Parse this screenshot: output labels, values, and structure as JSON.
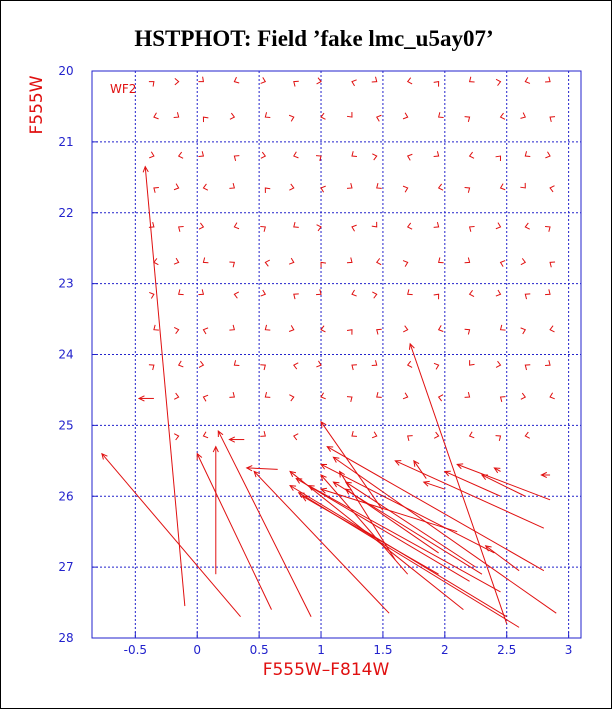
{
  "chart_data": {
    "type": "quiver",
    "title": "HSTPHOT: Field ’fake lmc_u5ay07’",
    "xlabel": "F555W–F814W",
    "ylabel": "F555W",
    "field_label": "WF2",
    "xlim": [
      -0.85,
      3.1
    ],
    "ylim": [
      28,
      20
    ],
    "xticks": [
      -0.5,
      0,
      0.5,
      1,
      1.5,
      2,
      2.5,
      3
    ],
    "xtick_labels": [
      "-0.5",
      "0",
      "0.5",
      "1",
      "1.5",
      "2",
      "2.5",
      "3"
    ],
    "yticks": [
      20,
      21,
      22,
      23,
      24,
      25,
      26,
      27,
      28
    ],
    "ytick_labels": [
      "20",
      "21",
      "22",
      "23",
      "24",
      "25",
      "26",
      "27",
      "28"
    ],
    "grid": true,
    "colors": {
      "vector": "#e01010",
      "axes": "#2222cc",
      "labels": "#e01010",
      "title": "#000000"
    },
    "grid_x": [
      -0.35,
      -0.15,
      0.05,
      0.3,
      0.55,
      0.78,
      1.0,
      1.25,
      1.45,
      1.7,
      1.95,
      2.2,
      2.45,
      2.65,
      2.85
    ],
    "grid_y": [
      20.15,
      20.65,
      21.2,
      21.65,
      22.2,
      22.7,
      23.15,
      23.65,
      24.15,
      24.6,
      25.15
    ],
    "short_vectors": [
      {
        "x": -0.35,
        "y": 20.15,
        "dx": 0.04,
        "dy": -0.06
      },
      {
        "x": -0.15,
        "y": 20.15,
        "dx": 0.05,
        "dy": 0.0
      },
      {
        "x": 0.05,
        "y": 20.15,
        "dx": 0.04,
        "dy": 0.06
      },
      {
        "x": 0.3,
        "y": 20.15,
        "dx": -0.05,
        "dy": 0.04
      },
      {
        "x": 0.55,
        "y": 20.15,
        "dx": 0.05,
        "dy": 0.03
      },
      {
        "x": 0.78,
        "y": 20.15,
        "dx": -0.04,
        "dy": -0.05
      },
      {
        "x": 1.0,
        "y": 20.15,
        "dx": 0.05,
        "dy": 0.02
      },
      {
        "x": 1.25,
        "y": 20.15,
        "dx": -0.05,
        "dy": -0.03
      },
      {
        "x": 1.45,
        "y": 20.15,
        "dx": 0.04,
        "dy": 0.05
      },
      {
        "x": 1.7,
        "y": 20.15,
        "dx": -0.05,
        "dy": 0.02
      },
      {
        "x": 1.95,
        "y": 20.15,
        "dx": 0.03,
        "dy": -0.06
      },
      {
        "x": 2.2,
        "y": 20.15,
        "dx": -0.04,
        "dy": 0.05
      },
      {
        "x": 2.45,
        "y": 20.15,
        "dx": 0.05,
        "dy": -0.02
      },
      {
        "x": 2.65,
        "y": 20.15,
        "dx": -0.05,
        "dy": 0.03
      },
      {
        "x": 2.85,
        "y": 20.15,
        "dx": 0.04,
        "dy": 0.05
      },
      {
        "x": -0.35,
        "y": 20.65,
        "dx": -0.05,
        "dy": 0.03
      },
      {
        "x": -0.15,
        "y": 20.65,
        "dx": 0.04,
        "dy": 0.05
      },
      {
        "x": 0.05,
        "y": 20.65,
        "dx": -0.03,
        "dy": -0.06
      },
      {
        "x": 0.3,
        "y": 20.65,
        "dx": 0.05,
        "dy": 0.02
      },
      {
        "x": 0.55,
        "y": 20.65,
        "dx": -0.04,
        "dy": 0.05
      },
      {
        "x": 0.78,
        "y": 20.65,
        "dx": 0.05,
        "dy": -0.03
      },
      {
        "x": 1.0,
        "y": 20.65,
        "dx": -0.05,
        "dy": 0.02
      },
      {
        "x": 1.25,
        "y": 20.65,
        "dx": 0.03,
        "dy": 0.06
      },
      {
        "x": 1.45,
        "y": 20.65,
        "dx": -0.05,
        "dy": -0.03
      },
      {
        "x": 1.7,
        "y": 20.65,
        "dx": 0.05,
        "dy": 0.03
      },
      {
        "x": 1.95,
        "y": 20.65,
        "dx": -0.04,
        "dy": 0.05
      },
      {
        "x": 2.2,
        "y": 20.65,
        "dx": 0.04,
        "dy": -0.05
      },
      {
        "x": 2.45,
        "y": 20.65,
        "dx": -0.05,
        "dy": 0.02
      },
      {
        "x": 2.65,
        "y": 20.65,
        "dx": 0.05,
        "dy": 0.04
      },
      {
        "x": 2.85,
        "y": 20.65,
        "dx": -0.04,
        "dy": -0.05
      },
      {
        "x": -0.35,
        "y": 21.2,
        "dx": 0.05,
        "dy": 0.03
      },
      {
        "x": -0.15,
        "y": 21.2,
        "dx": -0.05,
        "dy": 0.02
      },
      {
        "x": 0.05,
        "y": 21.2,
        "dx": 0.04,
        "dy": 0.05
      },
      {
        "x": 0.3,
        "y": 21.2,
        "dx": -0.04,
        "dy": -0.05
      },
      {
        "x": 0.55,
        "y": 21.2,
        "dx": 0.05,
        "dy": 0.02
      },
      {
        "x": 0.78,
        "y": 21.2,
        "dx": -0.05,
        "dy": 0.03
      },
      {
        "x": 1.0,
        "y": 21.2,
        "dx": 0.04,
        "dy": -0.05
      },
      {
        "x": 1.25,
        "y": 21.2,
        "dx": -0.04,
        "dy": 0.05
      },
      {
        "x": 1.45,
        "y": 21.2,
        "dx": 0.05,
        "dy": -0.02
      },
      {
        "x": 1.7,
        "y": 21.2,
        "dx": -0.05,
        "dy": -0.03
      },
      {
        "x": 1.95,
        "y": 21.2,
        "dx": 0.04,
        "dy": 0.05
      },
      {
        "x": 2.2,
        "y": 21.2,
        "dx": -0.05,
        "dy": 0.02
      },
      {
        "x": 2.45,
        "y": 21.2,
        "dx": 0.03,
        "dy": -0.06
      },
      {
        "x": 2.65,
        "y": 21.2,
        "dx": -0.04,
        "dy": 0.05
      },
      {
        "x": 2.85,
        "y": 21.2,
        "dx": 0.05,
        "dy": 0.03
      },
      {
        "x": -0.35,
        "y": 21.65,
        "dx": -0.04,
        "dy": -0.05
      },
      {
        "x": -0.15,
        "y": 21.65,
        "dx": 0.05,
        "dy": 0.03
      },
      {
        "x": 0.05,
        "y": 21.65,
        "dx": -0.05,
        "dy": 0.02
      },
      {
        "x": 0.3,
        "y": 21.65,
        "dx": 0.04,
        "dy": 0.05
      },
      {
        "x": 0.55,
        "y": 21.65,
        "dx": -0.03,
        "dy": -0.06
      },
      {
        "x": 0.78,
        "y": 21.65,
        "dx": 0.05,
        "dy": 0.02
      },
      {
        "x": 1.0,
        "y": 21.65,
        "dx": -0.05,
        "dy": -0.03
      },
      {
        "x": 1.25,
        "y": 21.65,
        "dx": 0.04,
        "dy": 0.05
      },
      {
        "x": 1.45,
        "y": 21.65,
        "dx": -0.04,
        "dy": 0.05
      },
      {
        "x": 1.7,
        "y": 21.65,
        "dx": 0.05,
        "dy": -0.03
      },
      {
        "x": 1.95,
        "y": 21.65,
        "dx": -0.05,
        "dy": 0.02
      },
      {
        "x": 2.2,
        "y": 21.65,
        "dx": 0.04,
        "dy": -0.05
      },
      {
        "x": 2.45,
        "y": 21.65,
        "dx": -0.05,
        "dy": 0.03
      },
      {
        "x": 2.65,
        "y": 21.65,
        "dx": 0.03,
        "dy": 0.06
      },
      {
        "x": 2.85,
        "y": 21.65,
        "dx": -0.05,
        "dy": -0.02
      },
      {
        "x": -0.35,
        "y": 22.2,
        "dx": 0.04,
        "dy": 0.05
      },
      {
        "x": -0.15,
        "y": 22.2,
        "dx": -0.04,
        "dy": -0.05
      },
      {
        "x": 0.05,
        "y": 22.2,
        "dx": 0.05,
        "dy": 0.02
      },
      {
        "x": 0.3,
        "y": 22.2,
        "dx": -0.05,
        "dy": 0.03
      },
      {
        "x": 0.55,
        "y": 22.2,
        "dx": 0.04,
        "dy": -0.05
      },
      {
        "x": 0.78,
        "y": 22.2,
        "dx": -0.04,
        "dy": 0.05
      },
      {
        "x": 1.0,
        "y": 22.2,
        "dx": 0.05,
        "dy": -0.02
      },
      {
        "x": 1.25,
        "y": 22.2,
        "dx": -0.05,
        "dy": -0.03
      },
      {
        "x": 1.45,
        "y": 22.2,
        "dx": 0.03,
        "dy": 0.06
      },
      {
        "x": 1.7,
        "y": 22.2,
        "dx": -0.05,
        "dy": 0.02
      },
      {
        "x": 1.95,
        "y": 22.2,
        "dx": 0.04,
        "dy": 0.05
      },
      {
        "x": 2.2,
        "y": 22.2,
        "dx": -0.04,
        "dy": -0.05
      },
      {
        "x": 2.45,
        "y": 22.2,
        "dx": 0.05,
        "dy": 0.03
      },
      {
        "x": 2.65,
        "y": 22.2,
        "dx": -0.05,
        "dy": 0.02
      },
      {
        "x": 2.85,
        "y": 22.2,
        "dx": 0.04,
        "dy": -0.05
      },
      {
        "x": -0.35,
        "y": 22.7,
        "dx": -0.05,
        "dy": 0.02
      },
      {
        "x": -0.15,
        "y": 22.7,
        "dx": 0.05,
        "dy": 0.03
      },
      {
        "x": 0.05,
        "y": 22.7,
        "dx": -0.04,
        "dy": 0.05
      },
      {
        "x": 0.3,
        "y": 22.7,
        "dx": 0.04,
        "dy": -0.05
      },
      {
        "x": 0.55,
        "y": 22.7,
        "dx": -0.05,
        "dy": -0.02
      },
      {
        "x": 0.78,
        "y": 22.7,
        "dx": 0.05,
        "dy": 0.03
      },
      {
        "x": 1.0,
        "y": 22.7,
        "dx": -0.03,
        "dy": -0.06
      },
      {
        "x": 1.25,
        "y": 22.7,
        "dx": 0.04,
        "dy": 0.05
      },
      {
        "x": 1.45,
        "y": 22.7,
        "dx": -0.05,
        "dy": 0.02
      },
      {
        "x": 1.7,
        "y": 22.7,
        "dx": 0.05,
        "dy": -0.03
      },
      {
        "x": 1.95,
        "y": 22.7,
        "dx": -0.04,
        "dy": 0.05
      },
      {
        "x": 2.2,
        "y": 22.7,
        "dx": 0.04,
        "dy": 0.05
      },
      {
        "x": 2.45,
        "y": 22.7,
        "dx": -0.05,
        "dy": -0.03
      },
      {
        "x": 2.65,
        "y": 22.7,
        "dx": 0.05,
        "dy": 0.02
      },
      {
        "x": 2.85,
        "y": 22.7,
        "dx": -0.04,
        "dy": -0.05
      },
      {
        "x": -0.35,
        "y": 23.15,
        "dx": 0.05,
        "dy": -0.03
      },
      {
        "x": -0.15,
        "y": 23.15,
        "dx": -0.04,
        "dy": 0.05
      },
      {
        "x": 0.05,
        "y": 23.15,
        "dx": 0.04,
        "dy": 0.05
      },
      {
        "x": 0.3,
        "y": 23.15,
        "dx": -0.05,
        "dy": -0.02
      },
      {
        "x": 0.55,
        "y": 23.15,
        "dx": 0.05,
        "dy": 0.03
      },
      {
        "x": 0.78,
        "y": 23.15,
        "dx": -0.04,
        "dy": -0.05
      },
      {
        "x": 1.0,
        "y": 23.15,
        "dx": 0.04,
        "dy": 0.05
      },
      {
        "x": 1.25,
        "y": 23.15,
        "dx": -0.05,
        "dy": 0.03
      },
      {
        "x": 1.45,
        "y": 23.15,
        "dx": 0.05,
        "dy": -0.02
      },
      {
        "x": 1.7,
        "y": 23.15,
        "dx": -0.04,
        "dy": 0.05
      },
      {
        "x": 1.95,
        "y": 23.15,
        "dx": 0.03,
        "dy": -0.06
      },
      {
        "x": 2.2,
        "y": 23.15,
        "dx": -0.05,
        "dy": 0.02
      },
      {
        "x": 2.45,
        "y": 23.15,
        "dx": 0.05,
        "dy": 0.03
      },
      {
        "x": 2.65,
        "y": 23.15,
        "dx": -0.04,
        "dy": -0.05
      },
      {
        "x": 2.85,
        "y": 23.15,
        "dx": 0.04,
        "dy": 0.05
      },
      {
        "x": -0.35,
        "y": 23.65,
        "dx": -0.04,
        "dy": 0.05
      },
      {
        "x": -0.15,
        "y": 23.65,
        "dx": 0.05,
        "dy": -0.02
      },
      {
        "x": 0.05,
        "y": 23.65,
        "dx": -0.05,
        "dy": -0.03
      },
      {
        "x": 0.3,
        "y": 23.65,
        "dx": 0.04,
        "dy": 0.05
      },
      {
        "x": 0.55,
        "y": 23.65,
        "dx": -0.04,
        "dy": 0.05
      },
      {
        "x": 0.78,
        "y": 23.65,
        "dx": 0.05,
        "dy": 0.03
      },
      {
        "x": 1.0,
        "y": 23.65,
        "dx": -0.05,
        "dy": 0.02
      },
      {
        "x": 1.25,
        "y": 23.65,
        "dx": 0.03,
        "dy": -0.06
      },
      {
        "x": 1.45,
        "y": 23.65,
        "dx": -0.04,
        "dy": -0.05
      },
      {
        "x": 1.7,
        "y": 23.65,
        "dx": 0.05,
        "dy": 0.02
      },
      {
        "x": 1.95,
        "y": 23.65,
        "dx": -0.05,
        "dy": 0.03
      },
      {
        "x": 2.2,
        "y": 23.65,
        "dx": 0.04,
        "dy": -0.05
      },
      {
        "x": 2.45,
        "y": 23.65,
        "dx": -0.04,
        "dy": 0.05
      },
      {
        "x": 2.65,
        "y": 23.65,
        "dx": 0.05,
        "dy": -0.03
      },
      {
        "x": 2.85,
        "y": 23.65,
        "dx": -0.05,
        "dy": 0.02
      },
      {
        "x": -0.35,
        "y": 24.15,
        "dx": 0.04,
        "dy": -0.05
      },
      {
        "x": -0.15,
        "y": 24.15,
        "dx": -0.05,
        "dy": 0.03
      },
      {
        "x": 0.05,
        "y": 24.15,
        "dx": 0.05,
        "dy": 0.02
      },
      {
        "x": 0.3,
        "y": 24.15,
        "dx": -0.04,
        "dy": 0.05
      },
      {
        "x": 0.55,
        "y": 24.15,
        "dx": 0.04,
        "dy": -0.05
      },
      {
        "x": 0.78,
        "y": 24.15,
        "dx": -0.05,
        "dy": -0.02
      },
      {
        "x": 1.0,
        "y": 24.15,
        "dx": 0.05,
        "dy": 0.03
      },
      {
        "x": 1.25,
        "y": 24.15,
        "dx": -0.04,
        "dy": -0.05
      },
      {
        "x": 1.45,
        "y": 24.15,
        "dx": 0.04,
        "dy": 0.05
      },
      {
        "x": 1.7,
        "y": 24.15,
        "dx": -0.05,
        "dy": 0.02
      },
      {
        "x": 1.95,
        "y": 24.15,
        "dx": 0.05,
        "dy": -0.03
      },
      {
        "x": 2.2,
        "y": 24.15,
        "dx": -0.03,
        "dy": 0.06
      },
      {
        "x": 2.45,
        "y": 24.15,
        "dx": 0.05,
        "dy": 0.02
      },
      {
        "x": 2.65,
        "y": 24.15,
        "dx": -0.04,
        "dy": -0.05
      },
      {
        "x": 2.85,
        "y": 24.15,
        "dx": 0.04,
        "dy": 0.05
      },
      {
        "x": -0.15,
        "y": 24.6,
        "dx": 0.05,
        "dy": 0.02
      },
      {
        "x": 0.05,
        "y": 24.6,
        "dx": -0.05,
        "dy": -0.03
      },
      {
        "x": 0.3,
        "y": 24.6,
        "dx": 0.04,
        "dy": 0.05
      },
      {
        "x": 0.55,
        "y": 24.6,
        "dx": -0.04,
        "dy": 0.05
      },
      {
        "x": 0.78,
        "y": 24.6,
        "dx": 0.05,
        "dy": -0.02
      },
      {
        "x": 1.0,
        "y": 24.6,
        "dx": -0.05,
        "dy": 0.03
      },
      {
        "x": 1.25,
        "y": 24.6,
        "dx": 0.04,
        "dy": -0.05
      },
      {
        "x": 1.45,
        "y": 24.6,
        "dx": -0.04,
        "dy": 0.05
      },
      {
        "x": 1.7,
        "y": 24.6,
        "dx": 0.05,
        "dy": 0.03
      },
      {
        "x": 1.95,
        "y": 24.6,
        "dx": -0.05,
        "dy": -0.02
      },
      {
        "x": 2.2,
        "y": 24.6,
        "dx": 0.04,
        "dy": 0.05
      },
      {
        "x": 2.45,
        "y": 24.6,
        "dx": -0.04,
        "dy": -0.05
      },
      {
        "x": 2.65,
        "y": 24.6,
        "dx": 0.05,
        "dy": 0.02
      },
      {
        "x": 2.85,
        "y": 24.6,
        "dx": -0.05,
        "dy": 0.03
      },
      {
        "x": -0.15,
        "y": 25.15,
        "dx": 0.05,
        "dy": -0.02
      },
      {
        "x": 0.05,
        "y": 25.15,
        "dx": -0.05,
        "dy": 0.03
      },
      {
        "x": 0.55,
        "y": 25.15,
        "dx": 0.04,
        "dy": 0.05
      },
      {
        "x": 0.78,
        "y": 25.15,
        "dx": -0.05,
        "dy": -0.02
      },
      {
        "x": 1.25,
        "y": 25.15,
        "dx": -0.04,
        "dy": 0.05
      },
      {
        "x": 1.45,
        "y": 25.15,
        "dx": 0.05,
        "dy": 0.03
      },
      {
        "x": 1.7,
        "y": 25.15,
        "dx": -0.04,
        "dy": -0.05
      },
      {
        "x": 1.95,
        "y": 25.15,
        "dx": 0.05,
        "dy": 0.02
      },
      {
        "x": 2.2,
        "y": 25.15,
        "dx": -0.05,
        "dy": 0.03
      },
      {
        "x": 2.45,
        "y": 25.15,
        "dx": 0.04,
        "dy": -0.05
      },
      {
        "x": 2.65,
        "y": 25.15,
        "dx": -0.05,
        "dy": 0.02
      }
    ],
    "long_vectors": [
      {
        "x1": -0.1,
        "y1": 27.55,
        "x2": -0.42,
        "y2": 21.35
      },
      {
        "x1": 0.35,
        "y1": 27.7,
        "x2": -0.77,
        "y2": 25.4
      },
      {
        "x1": 0.15,
        "y1": 27.1,
        "x2": 0.15,
        "y2": 25.3
      },
      {
        "x1": 0.6,
        "y1": 27.6,
        "x2": 0.0,
        "y2": 25.4
      },
      {
        "x1": 0.92,
        "y1": 27.7,
        "x2": 0.17,
        "y2": 25.08
      },
      {
        "x1": 2.5,
        "y1": 27.8,
        "x2": 1.72,
        "y2": 23.85
      },
      {
        "x1": -0.35,
        "y1": 24.62,
        "x2": -0.47,
        "y2": 24.62
      },
      {
        "x1": 0.38,
        "y1": 25.2,
        "x2": 0.26,
        "y2": 25.2
      },
      {
        "x1": 0.65,
        "y1": 25.62,
        "x2": 0.4,
        "y2": 25.6
      },
      {
        "x1": 1.55,
        "y1": 27.65,
        "x2": 0.46,
        "y2": 25.65
      },
      {
        "x1": 2.15,
        "y1": 27.6,
        "x2": 0.75,
        "y2": 25.65
      },
      {
        "x1": 2.2,
        "y1": 27.2,
        "x2": 0.8,
        "y2": 25.75
      },
      {
        "x1": 2.5,
        "y1": 27.7,
        "x2": 0.75,
        "y2": 25.85
      },
      {
        "x1": 2.6,
        "y1": 27.85,
        "x2": 0.82,
        "y2": 25.95
      },
      {
        "x1": 2.45,
        "y1": 27.35,
        "x2": 0.9,
        "y2": 25.85
      },
      {
        "x1": 1.95,
        "y1": 27.1,
        "x2": 0.85,
        "y2": 26.0
      },
      {
        "x1": 1.7,
        "y1": 27.1,
        "x2": 1.0,
        "y2": 25.7
      },
      {
        "x1": 2.3,
        "y1": 27.1,
        "x2": 1.1,
        "y2": 25.8
      },
      {
        "x1": 1.6,
        "y1": 26.9,
        "x2": 1.15,
        "y2": 25.65
      },
      {
        "x1": 2.9,
        "y1": 27.65,
        "x2": 1.1,
        "y2": 25.45
      },
      {
        "x1": 2.4,
        "y1": 26.8,
        "x2": 1.0,
        "y2": 25.55
      },
      {
        "x1": 1.95,
        "y1": 26.8,
        "x2": 1.2,
        "y2": 25.9
      },
      {
        "x1": 2.1,
        "y1": 26.5,
        "x2": 1.0,
        "y2": 25.9
      },
      {
        "x1": 2.25,
        "y1": 27.0,
        "x2": 1.2,
        "y2": 25.8
      },
      {
        "x1": 2.8,
        "y1": 27.05,
        "x2": 1.05,
        "y2": 25.3
      },
      {
        "x1": 2.8,
        "y1": 26.45,
        "x2": 1.6,
        "y2": 25.5
      },
      {
        "x1": 2.85,
        "y1": 26.05,
        "x2": 2.1,
        "y2": 25.55
      },
      {
        "x1": 2.45,
        "y1": 26.0,
        "x2": 2.0,
        "y2": 25.65
      },
      {
        "x1": 2.65,
        "y1": 26.0,
        "x2": 2.3,
        "y2": 25.7
      },
      {
        "x1": 1.5,
        "y1": 26.2,
        "x2": 1.0,
        "y2": 24.95
      },
      {
        "x1": 1.85,
        "y1": 25.75,
        "x2": 1.75,
        "y2": 25.5
      },
      {
        "x1": 2.85,
        "y1": 25.7,
        "x2": 2.78,
        "y2": 25.7
      },
      {
        "x1": 2.45,
        "y1": 25.65,
        "x2": 2.4,
        "y2": 25.6
      },
      {
        "x1": 2.6,
        "y1": 27.05,
        "x2": 2.33,
        "y2": 26.7
      },
      {
        "x1": 2.0,
        "y1": 25.9,
        "x2": 1.83,
        "y2": 25.8
      }
    ]
  }
}
